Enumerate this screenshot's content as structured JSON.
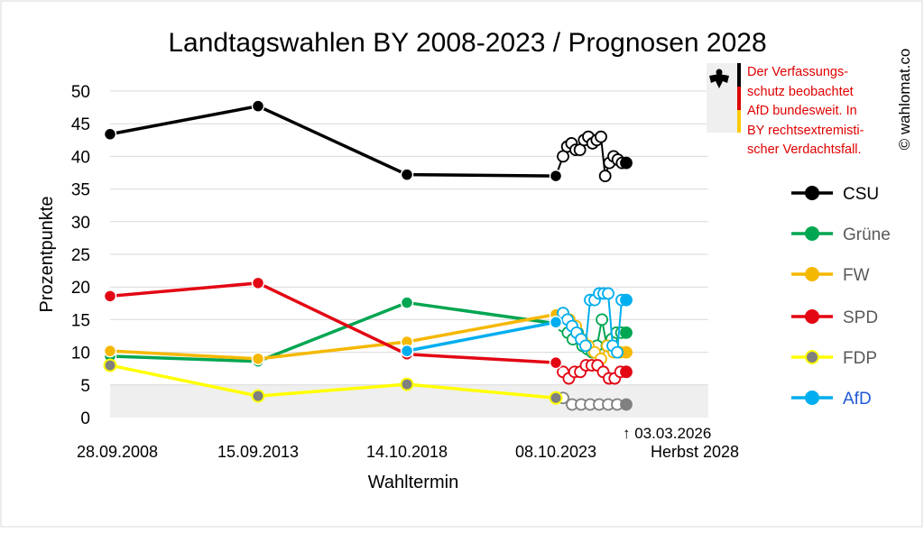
{
  "chart_data": {
    "type": "line",
    "title": "Landtagswahlen BY 2008-2023 / Prognosen 2028",
    "xlabel": "Wahltermin",
    "ylabel": "Prozentpunkte",
    "ylim": [
      0,
      50
    ],
    "yticks": [
      "0",
      "5",
      "10",
      "15",
      "20",
      "25",
      "30",
      "35",
      "40",
      "45",
      "50"
    ],
    "x_tick_labels": [
      "28.09.2008",
      "15.09.2013",
      "14.10.2018",
      "08.10.2023",
      "Herbst 2028"
    ],
    "elections": [
      "28.09.2008",
      "15.09.2013",
      "14.10.2018",
      "08.10.2023"
    ],
    "marker_label": "↑ 03.03.2026",
    "watermark": "© wahlomat.co",
    "note_lines": [
      "Der Verfassungs-",
      "schutz beobachtet",
      "AfD bundesweit. In",
      "BY rechtsextremisti-",
      "scher Verdachtsfall."
    ],
    "shaded_band": [
      0,
      5
    ],
    "series": [
      {
        "name": "CSU",
        "color": "#000000",
        "marker_fill": "#000000",
        "legend_color": "#000000",
        "results": [
          43.4,
          47.7,
          37.2,
          37.0
        ],
        "polls": [
          40,
          41.5,
          42,
          41,
          41,
          42.5,
          43,
          42,
          42.5,
          43,
          37,
          39,
          40,
          39.5,
          39,
          39
        ]
      },
      {
        "name": "Grüne",
        "color": "#00a651",
        "marker_fill": "#00a651",
        "legend_color": "#595959",
        "results": [
          9.4,
          8.6,
          17.6,
          14.4
        ],
        "polls": [
          14,
          13,
          12,
          13,
          11,
          10.5,
          10,
          11,
          15,
          11,
          12,
          13,
          13,
          13
        ]
      },
      {
        "name": "FW",
        "color": "#f5b800",
        "marker_fill": "#f5b800",
        "legend_color": "#595959",
        "results": [
          10.2,
          9.0,
          11.6,
          15.8
        ],
        "polls": [
          16,
          15,
          14,
          12,
          11,
          10,
          9,
          11,
          10,
          10,
          10
        ]
      },
      {
        "name": "SPD",
        "color": "#e30613",
        "marker_fill": "#e30613",
        "legend_color": "#595959",
        "results": [
          18.6,
          20.6,
          9.7,
          8.4
        ],
        "polls": [
          7,
          6,
          7,
          7,
          8,
          8,
          8,
          7,
          6,
          6,
          7,
          7
        ]
      },
      {
        "name": "FDP",
        "color": "#ffff00",
        "marker_fill": "#808080",
        "legend_color": "#595959",
        "results": [
          8.0,
          3.3,
          5.1,
          3.0
        ],
        "polls": [
          3,
          2,
          2,
          2,
          2,
          2,
          2,
          2
        ]
      },
      {
        "name": "AfD",
        "color": "#00aeef",
        "marker_fill": "#00aeef",
        "legend_color": "#1e5bd6",
        "results": [
          null,
          null,
          10.2,
          14.6
        ],
        "polls": [
          16,
          15,
          14,
          13,
          12,
          11,
          18,
          18,
          19,
          19,
          19,
          11,
          10,
          18,
          18
        ]
      }
    ]
  }
}
